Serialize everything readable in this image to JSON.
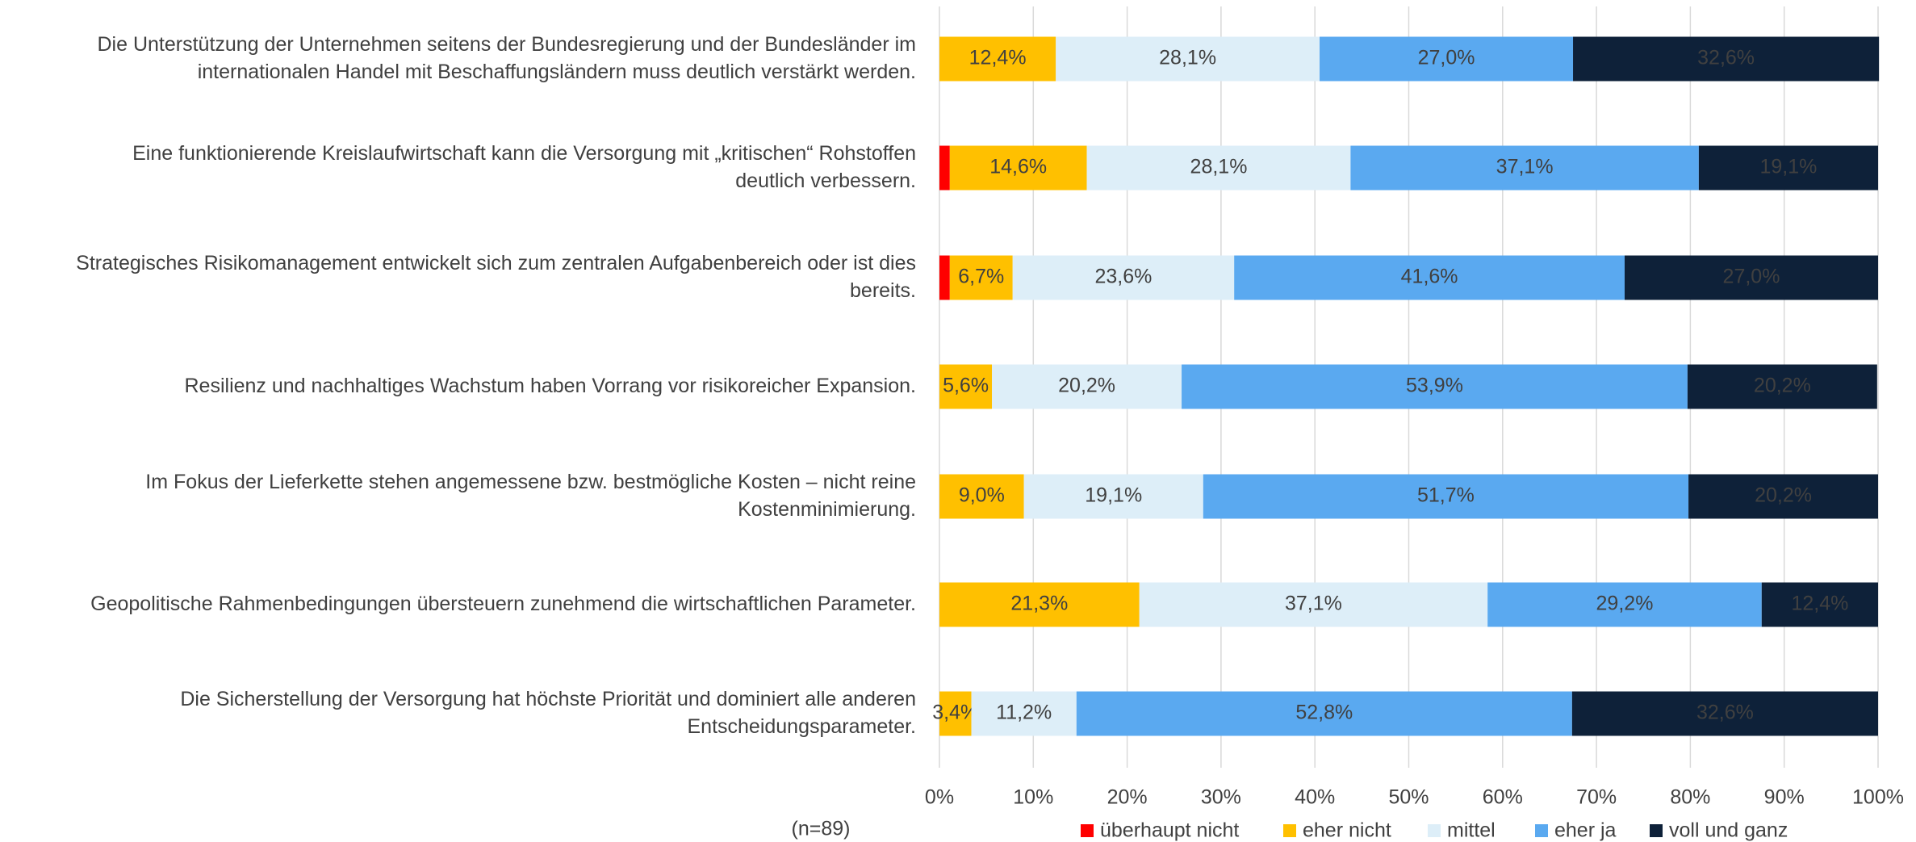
{
  "chart_data": {
    "type": "stacked-barh",
    "categories": [
      "Die Unterstützung der Unternehmen seitens der Bundesregierung und der Bundesländer im\ninternationalen Handel mit Beschaffungsländern muss deutlich verstärkt werden.",
      "Eine funktionierende Kreislaufwirtschaft kann die Versorgung mit „kritischen“ Rohstoffen\ndeutlich verbessern.",
      "Strategisches Risikomanagement entwickelt sich zum zentralen Aufgabenbereich oder ist dies\nbereits.",
      "Resilienz und nachhaltiges Wachstum haben Vorrang vor risikoreicher Expansion.",
      "Im Fokus der Lieferkette stehen angemessene bzw. bestmögliche Kosten – nicht reine\nKostenminimierung.",
      "Geopolitische Rahmenbedingungen übersteuern zunehmend die wirtschaftlichen Parameter.",
      "Die Sicherstellung der Versorgung hat höchste Priorität und dominiert alle anderen\nEntscheidungsparameter."
    ],
    "series": [
      {
        "name": "überhaupt nicht",
        "color": "#ff0000",
        "label_color": "#404040",
        "values": [
          0,
          1.1,
          1.1,
          0,
          0,
          0,
          0
        ],
        "value_labels": [
          null,
          null,
          null,
          null,
          null,
          null,
          null
        ]
      },
      {
        "name": "eher nicht",
        "color": "#ffc000",
        "label_color": "#404040",
        "values": [
          12.4,
          14.6,
          6.7,
          5.6,
          9.0,
          21.3,
          3.4
        ],
        "value_labels": [
          "12,4%",
          "14,6%",
          "6,7%",
          "5,6%",
          "9,0%",
          "21,3%",
          "3,4%"
        ]
      },
      {
        "name": "mittel",
        "color": "#ddeef8",
        "label_color": "#404040",
        "values": [
          28.1,
          28.1,
          23.6,
          20.2,
          19.1,
          37.1,
          11.2
        ],
        "value_labels": [
          "28,1%",
          "28,1%",
          "23,6%",
          "20,2%",
          "19,1%",
          "37,1%",
          "11,2%"
        ]
      },
      {
        "name": "eher ja",
        "color": "#5aa9f0",
        "label_color": "#404040",
        "values": [
          27.0,
          37.1,
          41.6,
          53.9,
          51.7,
          29.2,
          52.8
        ],
        "value_labels": [
          "27,0%",
          "37,1%",
          "41,6%",
          "53,9%",
          "51,7%",
          "29,2%",
          "52,8%"
        ]
      },
      {
        "name": "voll und ganz",
        "color": "#0e2139",
        "label_color": "#ffffff",
        "values": [
          32.6,
          19.1,
          27.0,
          20.2,
          20.2,
          12.4,
          32.6
        ],
        "value_labels": [
          "32,6%",
          "19,1%",
          "27,0%",
          "20,2%",
          "20,2%",
          "12,4%",
          "32,6%"
        ]
      }
    ],
    "xlim": [
      0,
      100
    ],
    "xticks": [
      {
        "value": 0,
        "label": "0%"
      },
      {
        "value": 10,
        "label": "10%"
      },
      {
        "value": 20,
        "label": "20%"
      },
      {
        "value": 30,
        "label": "30%"
      },
      {
        "value": 40,
        "label": "40%"
      },
      {
        "value": 50,
        "label": "50%"
      },
      {
        "value": 60,
        "label": "60%"
      },
      {
        "value": 70,
        "label": "70%"
      },
      {
        "value": 80,
        "label": "80%"
      },
      {
        "value": 90,
        "label": "90%"
      },
      {
        "value": 100,
        "label": "100%"
      }
    ],
    "grid": true,
    "legend": "bottom",
    "note": "(n=89)"
  }
}
